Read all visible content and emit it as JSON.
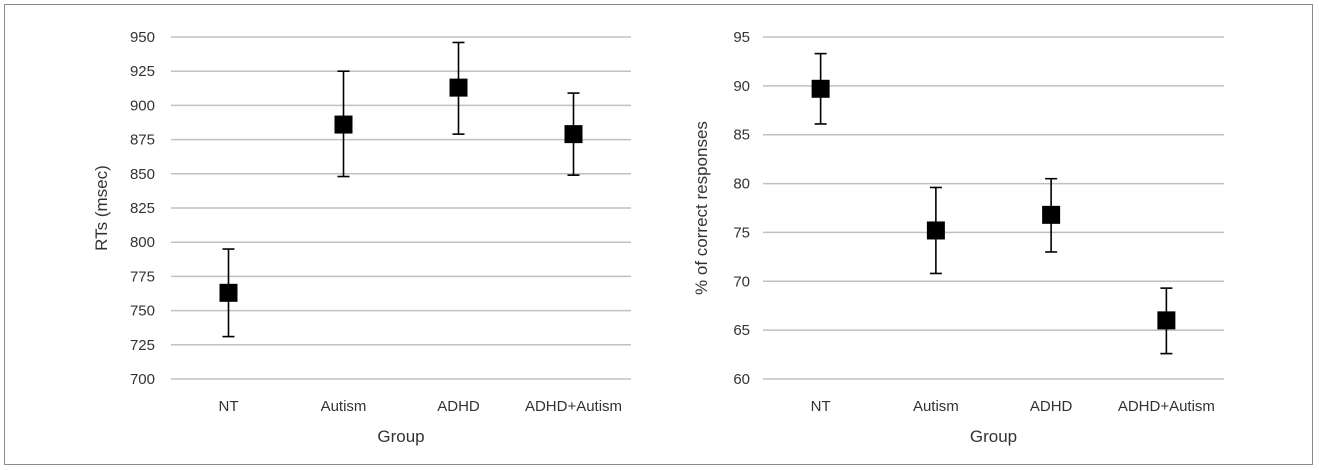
{
  "chart_data": [
    {
      "type": "scatter",
      "title": "",
      "xlabel": "Group",
      "ylabel": "RTs (msec)",
      "categories": [
        "NT",
        "Autism",
        "ADHD",
        "ADHD+Autism"
      ],
      "values": [
        763,
        886,
        913,
        879
      ],
      "error_low": [
        731,
        848,
        879,
        849
      ],
      "error_high": [
        795,
        925,
        946,
        909
      ],
      "ylim": [
        700,
        950
      ],
      "yticks": [
        700,
        725,
        750,
        775,
        800,
        825,
        850,
        875,
        900,
        925,
        950
      ],
      "grid": true,
      "legend": "none",
      "marker": "square",
      "marker_color": "#000000",
      "grid_color": "#c0c0c0"
    },
    {
      "type": "scatter",
      "title": "",
      "xlabel": "Group",
      "ylabel": "% of correct responses",
      "categories": [
        "NT",
        "Autism",
        "ADHD",
        "ADHD+Autism"
      ],
      "values": [
        89.7,
        75.2,
        76.8,
        66.0
      ],
      "error_low": [
        86.1,
        70.8,
        73.0,
        62.6
      ],
      "error_high": [
        93.3,
        79.6,
        80.5,
        69.3
      ],
      "ylim": [
        60,
        95
      ],
      "yticks": [
        60,
        65,
        70,
        75,
        80,
        85,
        90,
        95
      ],
      "grid": true,
      "legend": "none",
      "marker": "square",
      "marker_color": "#000000",
      "grid_color": "#c0c0c0"
    }
  ]
}
